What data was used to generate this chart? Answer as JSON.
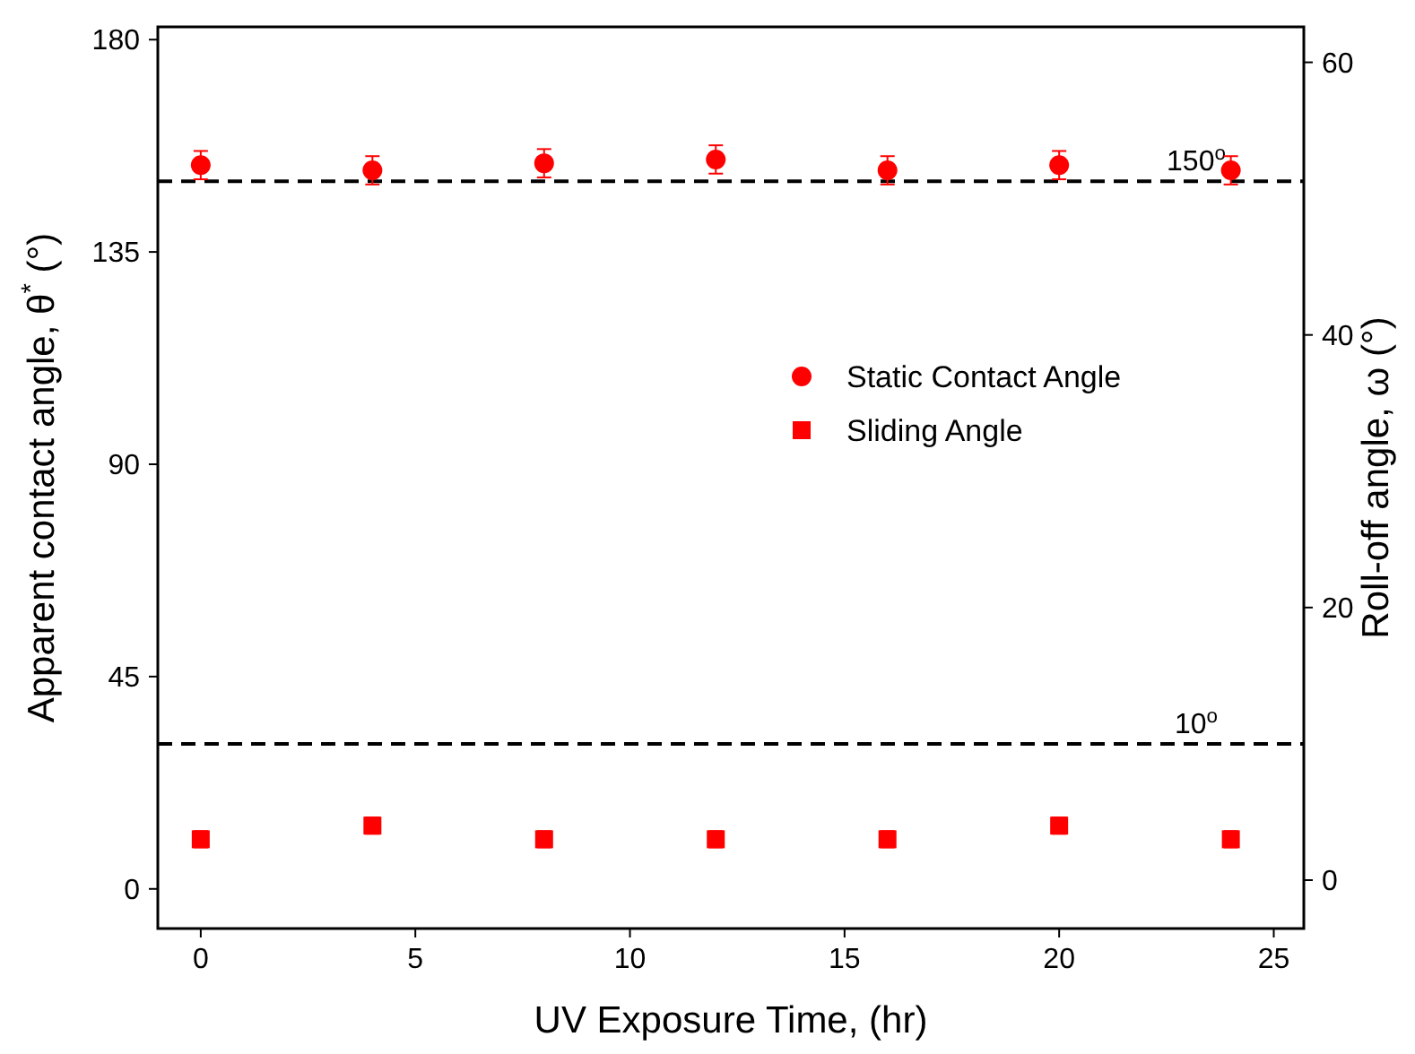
{
  "chart_data": {
    "type": "scatter",
    "xlabel": "UV Exposure Time, (hr)",
    "ylabel": "Apparent contact angle, θ$^{*}$ (°)",
    "y2label": "Roll-off angle, ω (°)",
    "x": [
      0,
      4,
      8,
      12,
      16,
      20,
      24
    ],
    "xlim": [
      -1,
      25.7
    ],
    "xticks": [
      0,
      5,
      10,
      15,
      20,
      25
    ],
    "ylim": [
      -8.4,
      182.7
    ],
    "yticks": [
      0,
      45,
      90,
      135,
      180
    ],
    "y2lim": [
      -3.55,
      62.6
    ],
    "y2ticks": [
      0,
      20,
      40,
      60
    ],
    "legend": "right",
    "grid": false,
    "series": [
      {
        "name": "Static Contact Angle",
        "color": "#ff0000",
        "marker": "circle",
        "values": [
          153.4,
          152.3,
          153.8,
          154.6,
          152.3,
          153.4,
          152.3
        ],
        "errors": [
          3,
          3,
          3,
          3,
          3,
          3,
          3
        ]
      },
      {
        "name": "Sliding Angle",
        "color": "#ff0000",
        "marker": "square",
        "axis": "y2",
        "values": [
          3,
          4,
          3,
          3,
          3,
          4,
          3
        ],
        "errors": [
          0.6,
          0.6,
          0.6,
          0.6,
          0.6,
          0.6,
          0.6
        ]
      }
    ],
    "ref_lines": [
      {
        "axis": "y",
        "value": 150,
        "label": "150$^{o}$",
        "line_style": "dashed",
        "color": "#000000"
      },
      {
        "axis": "y2",
        "value": 10,
        "label": "10$^{o}$",
        "line_style": "dashed",
        "color": "#000000"
      }
    ]
  }
}
